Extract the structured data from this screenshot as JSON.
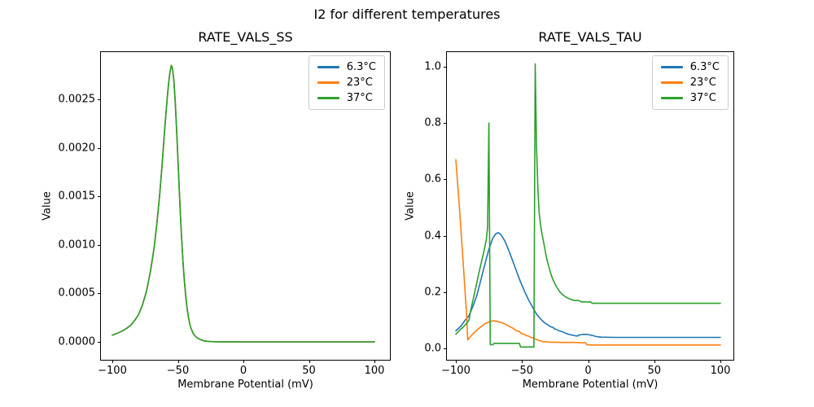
{
  "figure": {
    "suptitle": "I2 for different temperatures",
    "background": "#ffffff",
    "text_color": "#000000"
  },
  "temperatures": [
    {
      "label": "6.3°C",
      "color": "#1f77b4"
    },
    {
      "label": "23°C",
      "color": "#ff7f0e"
    },
    {
      "label": "37°C",
      "color": "#2ca02c"
    }
  ],
  "chart_data": [
    {
      "id": "ss",
      "type": "line",
      "title": "RATE_VALS_SS",
      "xlabel": "Membrane Potential (mV)",
      "ylabel": "Value",
      "xlim": [
        -110,
        110
      ],
      "ylim": [
        -0.00015,
        0.00304
      ],
      "grid": false,
      "legend_position": "upper right",
      "legend_labels": [
        "6.3°C",
        "23°C",
        "37°C"
      ],
      "xticks": {
        "values": [
          -100,
          -50,
          0,
          50,
          100
        ],
        "labels": [
          "−100",
          "−50",
          "0",
          "50",
          "100"
        ]
      },
      "yticks": {
        "values": [
          0,
          0.0005,
          0.001,
          0.0015,
          0.002,
          0.0025
        ],
        "labels": [
          "0.0000",
          "0.0005",
          "0.0010",
          "0.0015",
          "0.0020",
          "0.0025"
        ]
      },
      "overlap_note": "All three temperature curves coincide exactly; the 37°C green trace drawn last hides the blue and orange ones. Peak ≈ 0.00285 at ≈ −55 mV.",
      "shared_points": [
        [
          -100,
          7e-05
        ],
        [
          -96,
          9e-05
        ],
        [
          -92,
          0.000115
        ],
        [
          -89,
          0.00014
        ],
        [
          -86,
          0.00017
        ],
        [
          -83,
          0.00022
        ],
        [
          -80,
          0.00028
        ],
        [
          -77,
          0.00038
        ],
        [
          -74,
          0.00052
        ],
        [
          -71,
          0.00072
        ],
        [
          -68,
          0.00098
        ],
        [
          -66,
          0.00122
        ],
        [
          -64,
          0.0015
        ],
        [
          -62,
          0.00183
        ],
        [
          -60,
          0.0022
        ],
        [
          -58,
          0.00253
        ],
        [
          -57,
          0.00267
        ],
        [
          -56,
          0.00278
        ],
        [
          -55,
          0.00285
        ],
        [
          -54,
          0.00281
        ],
        [
          -53,
          0.00268
        ],
        [
          -52,
          0.00247
        ],
        [
          -51,
          0.0022
        ],
        [
          -50,
          0.0019
        ],
        [
          -49,
          0.00159
        ],
        [
          -48,
          0.0013
        ],
        [
          -47,
          0.00104
        ],
        [
          -46,
          0.00081
        ],
        [
          -45,
          0.00062
        ],
        [
          -44,
          0.00047
        ],
        [
          -43,
          0.00035
        ],
        [
          -42,
          0.00026
        ],
        [
          -41,
          0.00019
        ],
        [
          -40,
          0.00014
        ],
        [
          -39,
          0.00011
        ],
        [
          -38,
          8e-05
        ],
        [
          -36,
          5e-05
        ],
        [
          -34,
          3e-05
        ],
        [
          -32,
          2e-05
        ],
        [
          -30,
          1e-05
        ],
        [
          -26,
          4e-06
        ],
        [
          -22,
          2e-06
        ],
        [
          -15,
          1e-06
        ],
        [
          0,
          0
        ],
        [
          25,
          0
        ],
        [
          50,
          0
        ],
        [
          75,
          0
        ],
        [
          100,
          0
        ]
      ],
      "series": [
        {
          "name": "6.3°C",
          "color": "#1f77b4",
          "points": "shared"
        },
        {
          "name": "23°C",
          "color": "#ff7f0e",
          "points": "shared"
        },
        {
          "name": "37°C",
          "color": "#2ca02c",
          "points": "shared"
        }
      ]
    },
    {
      "id": "tau",
      "type": "line",
      "title": "RATE_VALS_TAU",
      "xlabel": "Membrane Potential (mV)",
      "ylabel": "Value",
      "xlim": [
        -110,
        110
      ],
      "ylim": [
        -0.05,
        1.05
      ],
      "grid": false,
      "legend_position": "upper right",
      "legend_labels": [
        "6.3°C",
        "23°C",
        "37°C"
      ],
      "xticks": {
        "values": [
          -100,
          -50,
          0,
          50,
          100
        ],
        "labels": [
          "−100",
          "−50",
          "0",
          "50",
          "100"
        ]
      },
      "yticks": {
        "values": [
          0,
          0.2,
          0.4,
          0.6,
          0.8,
          1.0
        ],
        "labels": [
          "0.0",
          "0.2",
          "0.4",
          "0.6",
          "0.8",
          "1.0"
        ]
      },
      "series": [
        {
          "name": "6.3°C",
          "color": "#1f77b4",
          "points": [
            [
              -100,
              0.062
            ],
            [
              -96,
              0.08
            ],
            [
              -93,
              0.1
            ],
            [
              -90,
              0.117
            ],
            [
              -87,
              0.15
            ],
            [
              -84,
              0.19
            ],
            [
              -81,
              0.245
            ],
            [
              -78,
              0.3
            ],
            [
              -75,
              0.352
            ],
            [
              -72,
              0.392
            ],
            [
              -70,
              0.406
            ],
            [
              -68,
              0.411
            ],
            [
              -66,
              0.404
            ],
            [
              -63,
              0.382
            ],
            [
              -60,
              0.348
            ],
            [
              -57,
              0.31
            ],
            [
              -54,
              0.272
            ],
            [
              -51,
              0.235
            ],
            [
              -48,
              0.202
            ],
            [
              -45,
              0.172
            ],
            [
              -42,
              0.146
            ],
            [
              -39,
              0.122
            ],
            [
              -36,
              0.105
            ],
            [
              -33,
              0.091
            ],
            [
              -30,
              0.082
            ],
            [
              -28,
              0.076
            ],
            [
              -27,
              0.076
            ],
            [
              -25,
              0.068
            ],
            [
              -24,
              0.068
            ],
            [
              -22,
              0.062
            ],
            [
              -20,
              0.06
            ],
            [
              -18,
              0.056
            ],
            [
              -16,
              0.052
            ],
            [
              -14,
              0.049
            ],
            [
              -12,
              0.047
            ],
            [
              -10,
              0.045
            ],
            [
              -8,
              0.044
            ],
            [
              -7,
              0.047
            ],
            [
              -5,
              0.049
            ],
            [
              -3,
              0.05
            ],
            [
              0,
              0.049
            ],
            [
              2,
              0.047
            ],
            [
              4,
              0.045
            ],
            [
              6,
              0.042
            ],
            [
              8,
              0.041
            ],
            [
              10,
              0.04
            ],
            [
              20,
              0.039
            ],
            [
              60,
              0.039
            ],
            [
              100,
              0.039
            ]
          ]
        },
        {
          "name": "23°C",
          "color": "#ff7f0e",
          "points": [
            [
              -100,
              0.67
            ],
            [
              -97,
              0.48
            ],
            [
              -94,
              0.27
            ],
            [
              -92,
              0.13
            ],
            [
              -91,
              0.03
            ],
            [
              -89,
              0.042
            ],
            [
              -87,
              0.052
            ],
            [
              -85,
              0.061
            ],
            [
              -83,
              0.069
            ],
            [
              -81,
              0.077
            ],
            [
              -79,
              0.084
            ],
            [
              -77,
              0.09
            ],
            [
              -75,
              0.094
            ],
            [
              -73,
              0.097
            ],
            [
              -71,
              0.098
            ],
            [
              -69,
              0.096
            ],
            [
              -67,
              0.094
            ],
            [
              -65,
              0.091
            ],
            [
              -63,
              0.087
            ],
            [
              -61,
              0.082
            ],
            [
              -59,
              0.077
            ],
            [
              -57,
              0.072
            ],
            [
              -55,
              0.066
            ],
            [
              -54,
              0.062
            ],
            [
              -52,
              0.06
            ],
            [
              -51,
              0.055
            ],
            [
              -50,
              0.052
            ],
            [
              -48,
              0.05
            ],
            [
              -47,
              0.046
            ],
            [
              -45,
              0.044
            ],
            [
              -44,
              0.04
            ],
            [
              -42,
              0.038
            ],
            [
              -41,
              0.034
            ],
            [
              -39,
              0.032
            ],
            [
              -38,
              0.029
            ],
            [
              -36,
              0.027
            ],
            [
              -35,
              0.025
            ],
            [
              -33,
              0.024
            ],
            [
              -31,
              0.023
            ],
            [
              -28,
              0.022
            ],
            [
              -24,
              0.022
            ],
            [
              -20,
              0.021
            ],
            [
              -15,
              0.021
            ],
            [
              -10,
              0.021
            ],
            [
              -5,
              0.02
            ],
            [
              -2,
              0.02
            ],
            [
              -1,
              0.013
            ],
            [
              2,
              0.012
            ],
            [
              10,
              0.012
            ],
            [
              50,
              0.012
            ],
            [
              100,
              0.012
            ]
          ]
        },
        {
          "name": "37°C",
          "color": "#2ca02c",
          "points": [
            [
              -100,
              0.05
            ],
            [
              -97,
              0.065
            ],
            [
              -94,
              0.078
            ],
            [
              -92,
              0.088
            ],
            [
              -91,
              0.094
            ],
            [
              -90,
              0.102
            ],
            [
              -89,
              0.13
            ],
            [
              -87,
              0.172
            ],
            [
              -85,
              0.215
            ],
            [
              -83,
              0.258
            ],
            [
              -81,
              0.3
            ],
            [
              -79,
              0.34
            ],
            [
              -77,
              0.385
            ],
            [
              -76,
              0.43
            ],
            [
              -75,
              0.8
            ],
            [
              -74,
              0.013
            ],
            [
              -72,
              0.013
            ],
            [
              -71,
              0.018
            ],
            [
              -65,
              0.018
            ],
            [
              -58,
              0.018
            ],
            [
              -52,
              0.018
            ],
            [
              -51,
              0.005
            ],
            [
              -46,
              0.005
            ],
            [
              -41,
              0.005
            ],
            [
              -40,
              1.01
            ],
            [
              -39,
              0.72
            ],
            [
              -38,
              0.565
            ],
            [
              -37,
              0.48
            ],
            [
              -36,
              0.44
            ],
            [
              -35,
              0.41
            ],
            [
              -34,
              0.385
            ],
            [
              -33,
              0.36
            ],
            [
              -32,
              0.335
            ],
            [
              -31,
              0.313
            ],
            [
              -30,
              0.295
            ],
            [
              -29,
              0.278
            ],
            [
              -28,
              0.262
            ],
            [
              -27,
              0.249
            ],
            [
              -26,
              0.238
            ],
            [
              -25,
              0.228
            ],
            [
              -24,
              0.22
            ],
            [
              -23,
              0.212
            ],
            [
              -22,
              0.205
            ],
            [
              -21,
              0.199
            ],
            [
              -20,
              0.194
            ],
            [
              -19,
              0.19
            ],
            [
              -18,
              0.186
            ],
            [
              -17,
              0.183
            ],
            [
              -16,
              0.18
            ],
            [
              -15,
              0.178
            ],
            [
              -13,
              0.174
            ],
            [
              -11,
              0.171
            ],
            [
              -10,
              0.17
            ],
            [
              -7,
              0.17
            ],
            [
              -5,
              0.165
            ],
            [
              -2,
              0.165
            ],
            [
              0,
              0.165
            ],
            [
              2,
              0.165
            ],
            [
              3,
              0.16
            ],
            [
              6,
              0.16
            ],
            [
              20,
              0.16
            ],
            [
              50,
              0.16
            ],
            [
              80,
              0.16
            ],
            [
              100,
              0.16
            ]
          ]
        }
      ]
    }
  ]
}
